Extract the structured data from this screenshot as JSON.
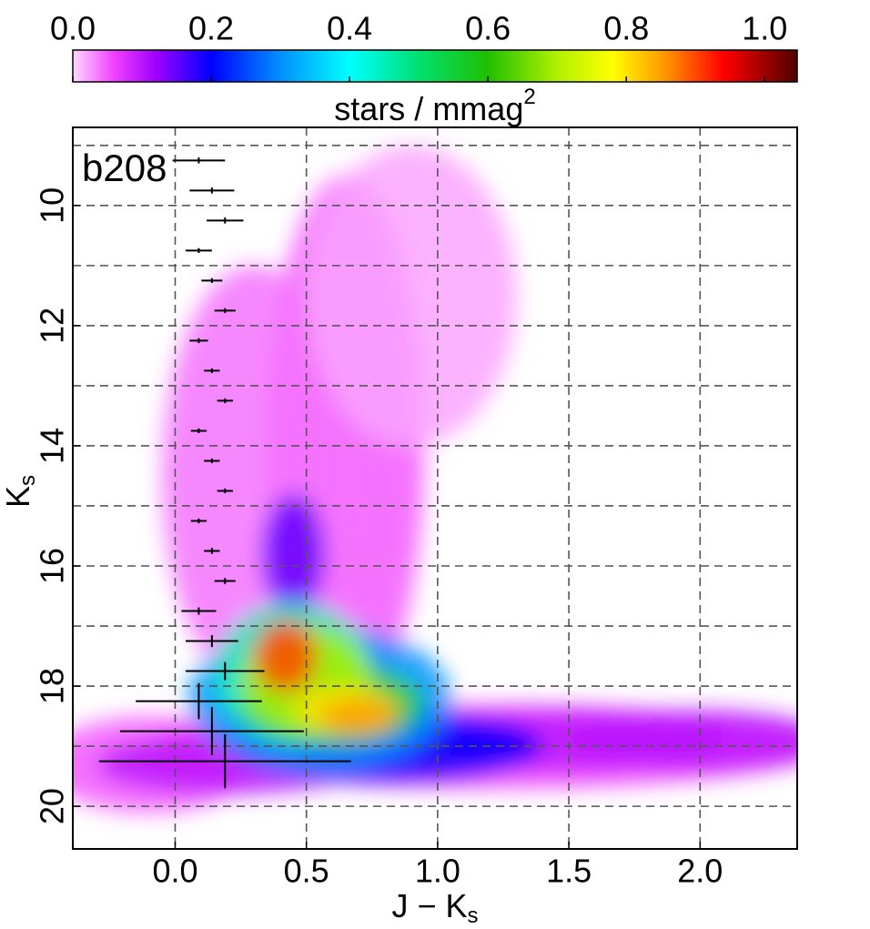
{
  "chart_data": {
    "type": "hess",
    "annotation": "b208",
    "xlabel": {
      "main": "J − K",
      "sub": "s"
    },
    "ylabel": {
      "main": "K",
      "sub": "s"
    },
    "xlim": [
      -0.39,
      2.37
    ],
    "ylim": [
      20.71,
      8.7
    ],
    "xticks": [
      {
        "value": 0,
        "label": "0.0"
      },
      {
        "value": 0.5,
        "label": "0.5"
      },
      {
        "value": 1,
        "label": "1.0"
      },
      {
        "value": 1.5,
        "label": "1.5"
      },
      {
        "value": 2,
        "label": "2.0"
      }
    ],
    "yticks": [
      10,
      12,
      14,
      16,
      18,
      20
    ],
    "ygrid": [
      9,
      10,
      11,
      12,
      13,
      14,
      15,
      16,
      17,
      18,
      19,
      20
    ],
    "grid": true,
    "colorbar": {
      "label": {
        "main": "stars / mmag",
        "sup": "2"
      },
      "clim": [
        0,
        1.047
      ],
      "ticks": [
        {
          "value": 0,
          "label": "0.0"
        },
        {
          "value": 0.2,
          "label": "0.2"
        },
        {
          "value": 0.4,
          "label": "0.4"
        },
        {
          "value": 0.6,
          "label": "0.6"
        },
        {
          "value": 0.8,
          "label": "0.8"
        },
        {
          "value": 1,
          "label": "1.0"
        }
      ],
      "colormap": [
        [
          0,
          "#ffd8ff"
        ],
        [
          0.06,
          "#f040ff"
        ],
        [
          0.12,
          "#a000ff"
        ],
        [
          0.2,
          "#0000ff"
        ],
        [
          0.3,
          "#0090ff"
        ],
        [
          0.4,
          "#00ffff"
        ],
        [
          0.5,
          "#00e070"
        ],
        [
          0.6,
          "#20c000"
        ],
        [
          0.7,
          "#b0f000"
        ],
        [
          0.78,
          "#ffff00"
        ],
        [
          0.86,
          "#ff9000"
        ],
        [
          0.94,
          "#ff0000"
        ],
        [
          1.047,
          "#500000"
        ]
      ]
    },
    "density": {
      "x": [
        0.65,
        0.3,
        0.9,
        -0.1,
        1.2,
        0.2,
        2.0,
        1.5,
        0.45,
        0.8,
        0.55,
        0.45,
        0.6,
        0.5,
        0.65,
        0.7,
        0.42
      ],
      "y": [
        14.0,
        14.5,
        11.5,
        19.3,
        19.0,
        19.3,
        18.9,
        18.9,
        15.8,
        19.0,
        18.2,
        17.8,
        18.3,
        17.9,
        18.4,
        18.5,
        17.5
      ],
      "sx": [
        0.3,
        0.35,
        0.4,
        0.4,
        1.3,
        0.5,
        0.5,
        0.6,
        0.12,
        0.6,
        0.5,
        0.3,
        0.35,
        0.25,
        0.2,
        0.15,
        0.12
      ],
      "sy": [
        4.5,
        3.5,
        2.5,
        0.8,
        0.7,
        0.5,
        0.5,
        0.5,
        1.0,
        0.6,
        1.2,
        1.2,
        0.7,
        0.9,
        0.4,
        0.3,
        0.6
      ],
      "z": [
        0.05,
        0.04,
        0.02,
        0.05,
        0.06,
        0.1,
        0.1,
        0.1,
        0.15,
        0.2,
        0.3,
        0.45,
        0.55,
        0.7,
        0.8,
        0.85,
        0.9
      ]
    },
    "errorbars": {
      "x": [
        0.09,
        0.14,
        0.19,
        0.09,
        0.14,
        0.19,
        0.09,
        0.14,
        0.19,
        0.09,
        0.14,
        0.19,
        0.09,
        0.14,
        0.19,
        0.09,
        0.14,
        0.19,
        0.09,
        0.14,
        0.19
      ],
      "y": [
        9.25,
        9.75,
        10.25,
        10.75,
        11.25,
        11.75,
        12.25,
        12.75,
        13.25,
        13.75,
        14.25,
        14.75,
        15.25,
        15.75,
        16.25,
        16.75,
        17.25,
        17.75,
        18.25,
        18.75,
        19.25
      ],
      "xerr": [
        0.1,
        0.085,
        0.07,
        0.05,
        0.04,
        0.04,
        0.035,
        0.03,
        0.03,
        0.03,
        0.03,
        0.03,
        0.03,
        0.03,
        0.04,
        0.066,
        0.1,
        0.15,
        0.24,
        0.35,
        0.48
      ],
      "yerr": [
        0.05,
        0.05,
        0.05,
        0.04,
        0.04,
        0.04,
        0.04,
        0.04,
        0.04,
        0.04,
        0.04,
        0.04,
        0.04,
        0.05,
        0.05,
        0.06,
        0.1,
        0.15,
        0.3,
        0.4,
        0.45
      ]
    }
  }
}
